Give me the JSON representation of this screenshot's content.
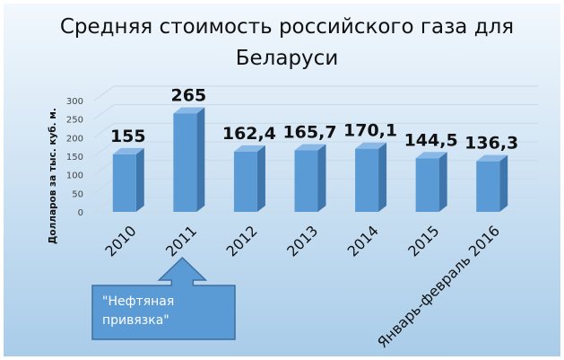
{
  "chart_data": {
    "type": "bar",
    "title_lines": [
      "Средняя стоимость российского газа для",
      "Беларуси"
    ],
    "ylabel": "Долларов за тыс. куб. м.",
    "ylim": [
      0,
      300
    ],
    "yticks": [
      "0",
      "50",
      "100",
      "150",
      "200",
      "250",
      "300"
    ],
    "categories": [
      "2010",
      "2011",
      "2012",
      "2013",
      "2014",
      "2015",
      "Январь-февраль 2016"
    ],
    "values": [
      155,
      265,
      162.4,
      165.7,
      170.1,
      144.5,
      136.3
    ],
    "value_labels": [
      "155",
      "265",
      "162,4",
      "165,7",
      "170,1",
      "144,5",
      "136,3"
    ],
    "grid": true,
    "annotation": {
      "lines": [
        "\"Нефтяная",
        "привязка\""
      ],
      "points_to": "2011"
    }
  },
  "colors": {
    "bar_front": "#5b9bd5",
    "bar_side": "#3f76ab",
    "bar_top": "#8ab8e6",
    "background_top": "#f2f8fd",
    "background_bottom": "#a9cce9",
    "callout_fill": "#5b9bd5",
    "callout_border": "#3d6fa0"
  }
}
